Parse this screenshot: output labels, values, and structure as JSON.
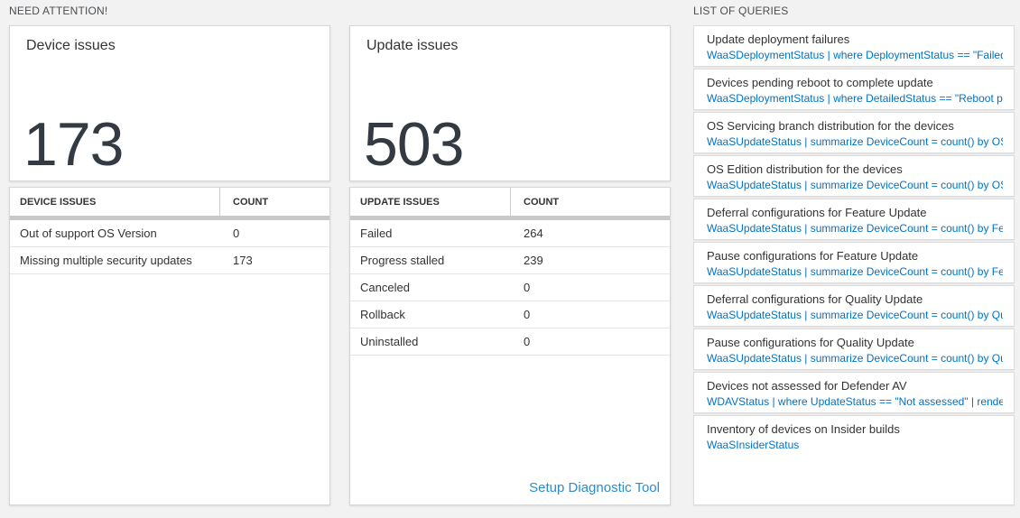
{
  "sections": {
    "need_attention_label": "NEED ATTENTION!",
    "list_of_queries_label": "LIST OF QUERIES"
  },
  "device_tile": {
    "title": "Device issues",
    "count": "173"
  },
  "update_tile": {
    "title": "Update issues",
    "count": "503"
  },
  "device_table": {
    "headers": [
      "DEVICE ISSUES",
      "COUNT"
    ],
    "rows": [
      {
        "label": "Out of support OS Version",
        "count": "0"
      },
      {
        "label": "Missing multiple security updates",
        "count": "173"
      }
    ]
  },
  "update_table": {
    "headers": [
      "UPDATE ISSUES",
      "COUNT"
    ],
    "rows": [
      {
        "label": "Failed",
        "count": "264"
      },
      {
        "label": "Progress stalled",
        "count": "239"
      },
      {
        "label": "Canceled",
        "count": "0"
      },
      {
        "label": "Rollback",
        "count": "0"
      },
      {
        "label": "Uninstalled",
        "count": "0"
      }
    ],
    "link_label": "Setup Diagnostic Tool"
  },
  "queries": [
    {
      "title": "Update deployment failures",
      "query": "WaaSDeploymentStatus | where DeploymentStatus == \"Failed\" |..."
    },
    {
      "title": "Devices pending reboot to complete update",
      "query": "WaaSDeploymentStatus | where DetailedStatus == \"Reboot pend..."
    },
    {
      "title": "OS Servicing branch distribution for the devices",
      "query": "WaaSUpdateStatus | summarize DeviceCount = count() by OSSer..."
    },
    {
      "title": "OS Edition distribution for the devices",
      "query": "WaaSUpdateStatus | summarize DeviceCount = count() by OSEdit..."
    },
    {
      "title": "Deferral configurations for Feature Update",
      "query": "WaaSUpdateStatus | summarize DeviceCount = count() by Featur..."
    },
    {
      "title": "Pause configurations for Feature Update",
      "query": "WaaSUpdateStatus | summarize DeviceCount = count() by Featur..."
    },
    {
      "title": "Deferral configurations for Quality Update",
      "query": "WaaSUpdateStatus | summarize DeviceCount = count() by Qualit..."
    },
    {
      "title": "Pause configurations for Quality Update",
      "query": "WaaSUpdateStatus | summarize DeviceCount = count() by Qualit..."
    },
    {
      "title": "Devices not assessed for Defender AV",
      "query": "WDAVStatus | where UpdateStatus == \"Not assessed\" | render ta..."
    },
    {
      "title": "Inventory of devices on Insider builds",
      "query": "WaaSInsiderStatus"
    }
  ],
  "colors": {
    "page_background": "#f2f2f2",
    "query_link_blue": "#0072c6",
    "action_link_blue": "#2e8cd0",
    "big_count_text": "#333a42",
    "thick_separator": "#c8c8c8"
  }
}
